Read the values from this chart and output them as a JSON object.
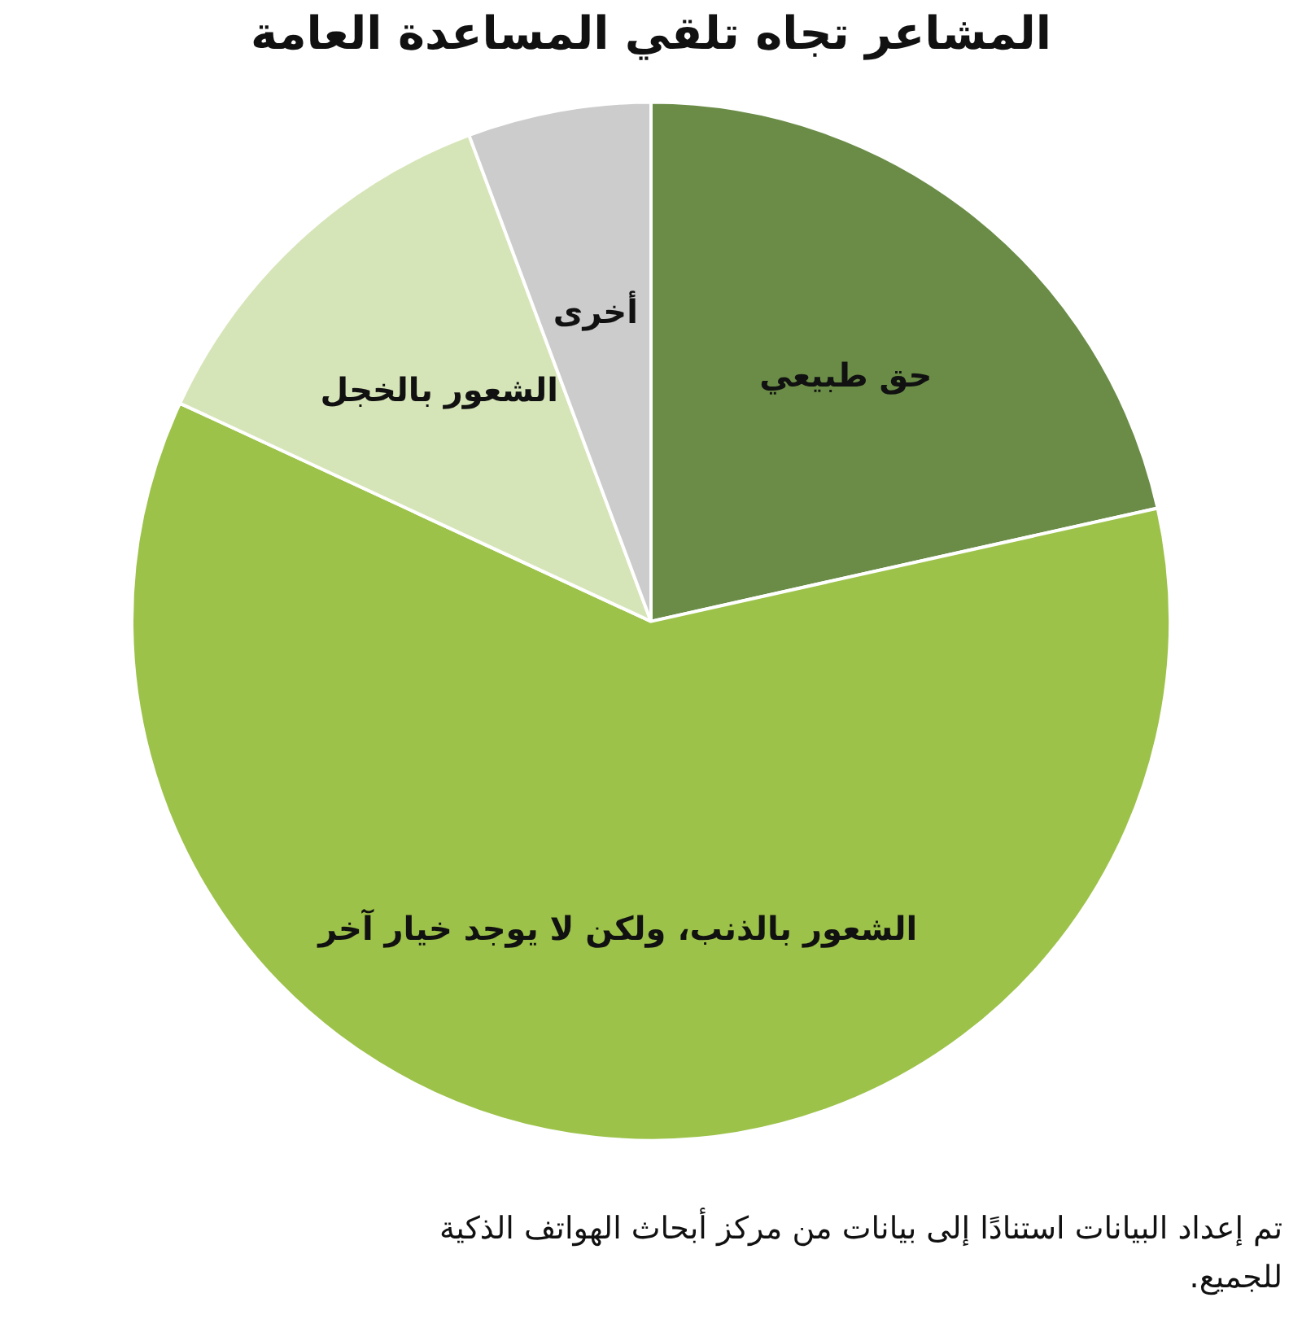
{
  "chart_data": {
    "type": "pie",
    "title": "المشاعر تجاه تلقي المساعدة العامة",
    "categories": [
      "حق طبيعي",
      "الشعور بالذنب، ولكن لا يوجد خيار آخر",
      "الشعور بالخجل",
      "أخرى"
    ],
    "values": [
      21.5,
      60.4,
      12.4,
      5.7
    ],
    "colors": [
      "#6a8c47",
      "#9cc24a",
      "#d6e5b8",
      "#cccccc"
    ],
    "legend": false,
    "annotations": [
      "تم إعداد البيانات استنادًا إلى بيانات من مركز أبحاث الهواتف الذكية للجميع."
    ]
  }
}
